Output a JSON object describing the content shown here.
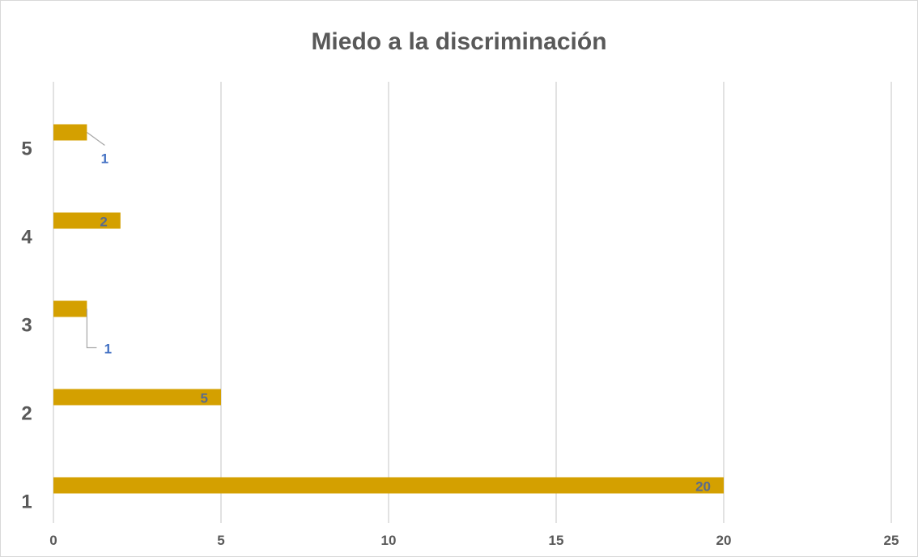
{
  "chart_data": {
    "type": "bar",
    "orientation": "horizontal",
    "title": "Miedo a la discriminación",
    "categories": [
      "1",
      "2",
      "3",
      "4",
      "5"
    ],
    "values": [
      20,
      5,
      1,
      2,
      1
    ],
    "xlim": [
      0,
      25
    ],
    "xticks": [
      "0",
      "5",
      "10",
      "15",
      "20",
      "25"
    ],
    "grid": "vertical",
    "legend": "none",
    "bar_color": "#D4A000",
    "label_color": "#4472C4",
    "inner_label_color": "#5A6B8C",
    "xlabel": "",
    "ylabel": ""
  }
}
